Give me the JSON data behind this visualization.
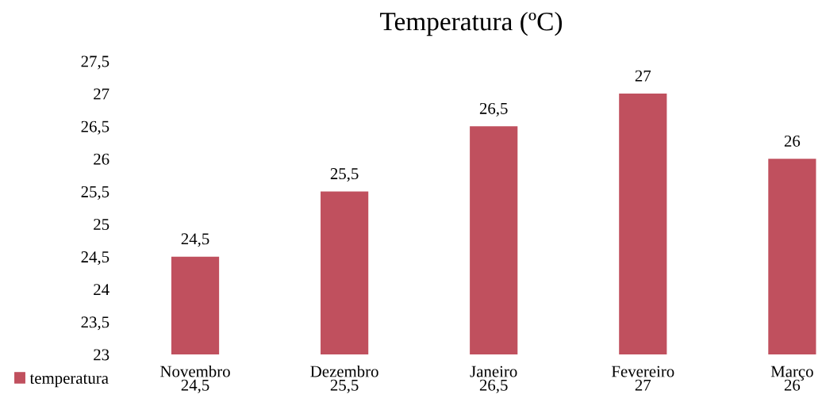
{
  "chart_data": {
    "type": "bar",
    "title": "Temperatura (ºC)",
    "categories": [
      "Novembro",
      "Dezembro",
      "Janeiro",
      "Fevereiro",
      "Março"
    ],
    "series": [
      {
        "name": "temperatura",
        "color": "#c0505e",
        "values": [
          24.5,
          25.5,
          26.5,
          27,
          26
        ],
        "value_labels": [
          "24,5",
          "25,5",
          "26,5",
          "27",
          "26"
        ]
      }
    ],
    "ylim": [
      23,
      27.5
    ],
    "yticks": [
      23,
      {
        "value": 23.5,
        "label": "23,5"
      },
      24,
      {
        "value": 24.5,
        "label": "24,5"
      },
      25,
      {
        "value": 25.5,
        "label": "25,5"
      },
      26,
      {
        "value": 26.5,
        "label": "26,5"
      },
      27,
      {
        "value": 27.5,
        "label": "27,5"
      }
    ],
    "grid": false,
    "legend": "bottom left"
  }
}
